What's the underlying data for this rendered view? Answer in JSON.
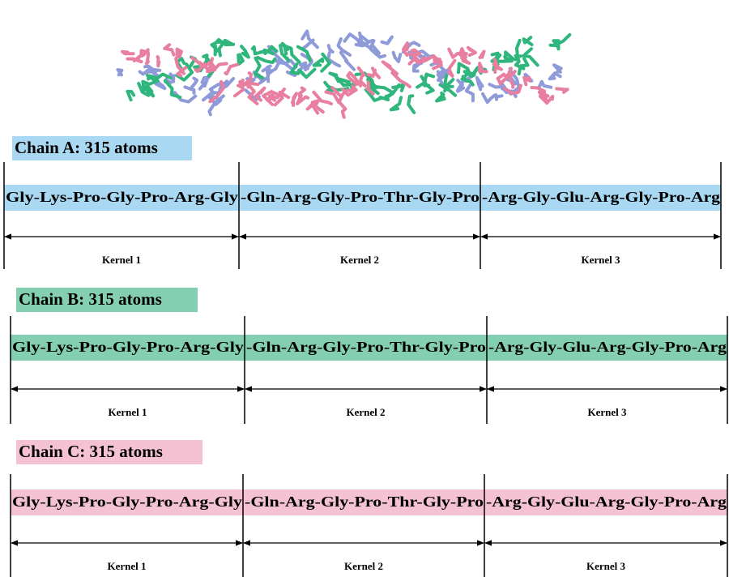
{
  "chains": [
    {
      "label": "Chain A: 315 atoms",
      "sequence": [
        "Gly-Lys-Pro-Gly-Pro-Arg-Gly",
        "-Gln-Arg-Gly-Pro-Thr-Gly-Pro",
        "-Arg-Gly-Glu-Arg-Gly-Pro-Arg"
      ],
      "kernels": [
        "Kernel 1",
        "Kernel 2",
        "Kernel 3"
      ]
    },
    {
      "label": "Chain B: 315 atoms",
      "sequence": [
        "Gly-Lys-Pro-Gly-Pro-Arg-Gly",
        "-Gln-Arg-Gly-Pro-Thr-Gly-Pro",
        "-Arg-Gly-Glu-Arg-Gly-Pro-Arg"
      ],
      "kernels": [
        "Kernel 1",
        "Kernel 2",
        "Kernel 3"
      ]
    },
    {
      "label": "Chain C: 315 atoms",
      "sequence": [
        "Gly-Lys-Pro-Gly-Pro-Arg-Gly",
        "-Gln-Arg-Gly-Pro-Thr-Gly-Pro",
        "-Arg-Gly-Glu-Arg-Gly-Pro-Arg"
      ],
      "kernels": [
        "Kernel 1",
        "Kernel 2",
        "Kernel 3"
      ]
    }
  ]
}
